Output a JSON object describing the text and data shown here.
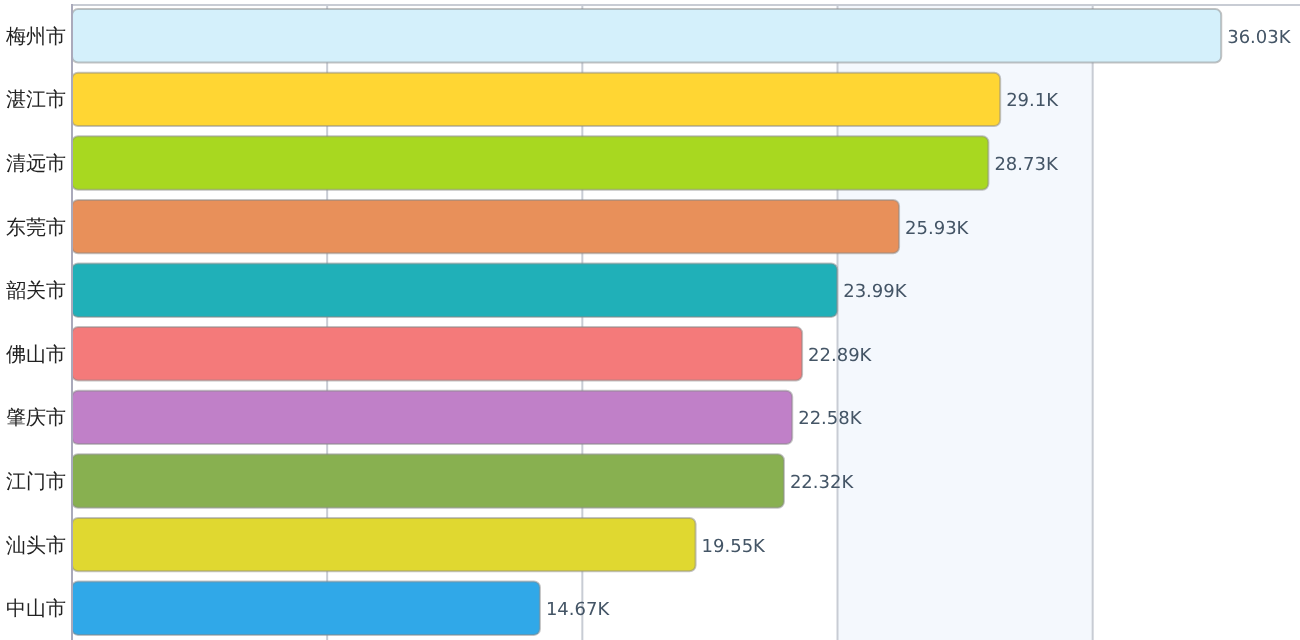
{
  "chart_data": {
    "type": "bar",
    "orientation": "horizontal",
    "categories": [
      "梅州市",
      "湛江市",
      "清远市",
      "东莞市",
      "韶关市",
      "佛山市",
      "肇庆市",
      "江门市",
      "汕头市",
      "中山市"
    ],
    "values": [
      36.03,
      29.1,
      28.73,
      25.93,
      23.99,
      22.89,
      22.58,
      22.32,
      19.55,
      14.67
    ],
    "value_labels": [
      "36.03K",
      "29.1K",
      "28.73K",
      "25.93K",
      "23.99K",
      "22.89K",
      "22.58K",
      "22.32K",
      "19.55K",
      "14.67K"
    ],
    "colors": [
      "#d4f0fb",
      "#ffd633",
      "#a8d820",
      "#e8905a",
      "#20b0b8",
      "#f47a7a",
      "#c080c8",
      "#88b050",
      "#e0d830",
      "#30a8e8"
    ],
    "xlim": [
      0,
      38.5
    ],
    "xticks": [
      {
        "value": 0,
        "label": null
      },
      {
        "value": 8,
        "label": null
      },
      {
        "value": 16,
        "label": null
      },
      {
        "value": 24,
        "label": null
      },
      {
        "value": 32,
        "label": null
      }
    ],
    "bands": [
      {
        "axis": "x",
        "from": 24,
        "to": 32,
        "color": "#f4f8fd"
      }
    ],
    "grid": "x",
    "tick_labels": "y"
  }
}
